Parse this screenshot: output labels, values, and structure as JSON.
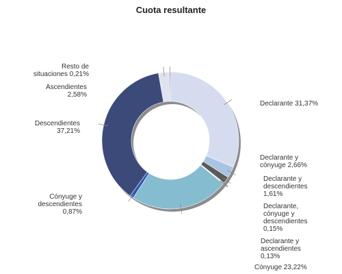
{
  "chart_data": {
    "type": "pie",
    "variant": "donut",
    "title": "Cuota resultante",
    "slices": [
      {
        "name": "Declarante",
        "value": 31.37,
        "label_lines": [
          "Declarante 31,37%"
        ],
        "color": "#d6dcf0"
      },
      {
        "name": "Declarante y cónyuge",
        "value": 2.66,
        "label_lines": [
          "Declarante y",
          "cónyuge 2,66%"
        ],
        "color": "#a8c4e2"
      },
      {
        "name": "Declarante y descendientes",
        "value": 1.61,
        "label_lines": [
          "Declarante y",
          "descendientes",
          "1,61%"
        ],
        "color": "#5a5a5a"
      },
      {
        "name": "Declarante, cónyuge y descendientes",
        "value": 0.15,
        "label_lines": [
          "Declarante,",
          "cónyuge y",
          "descendientes",
          "0,15%"
        ],
        "color": "#8a8a8a"
      },
      {
        "name": "Declarante y ascendientes",
        "value": 0.13,
        "label_lines": [
          "Declarante y",
          "ascendientes",
          "0,13%"
        ],
        "color": "#b0b0b0"
      },
      {
        "name": "Cónyuge",
        "value": 23.22,
        "label_lines": [
          "Cónyuge 23,22%"
        ],
        "color": "#86bccf"
      },
      {
        "name": "Cónyuge y descendientes",
        "value": 0.87,
        "label_lines": [
          "Cónyuge y",
          "descendientes",
          "0,87%"
        ],
        "color": "#2f55b8"
      },
      {
        "name": "Descendientes",
        "value": 37.21,
        "label_lines": [
          "Descendientes",
          "37,21%"
        ],
        "color": "#3c4a7a"
      },
      {
        "name": "Ascendientes",
        "value": 2.58,
        "label_lines": [
          "Ascendientes",
          "2,58%"
        ],
        "color": "#dfe3ee"
      },
      {
        "name": "Resto de situaciones",
        "value": 0.21,
        "label_lines": [
          "Resto de",
          "situaciones 0,21%"
        ],
        "color": "#707890"
      }
    ]
  }
}
